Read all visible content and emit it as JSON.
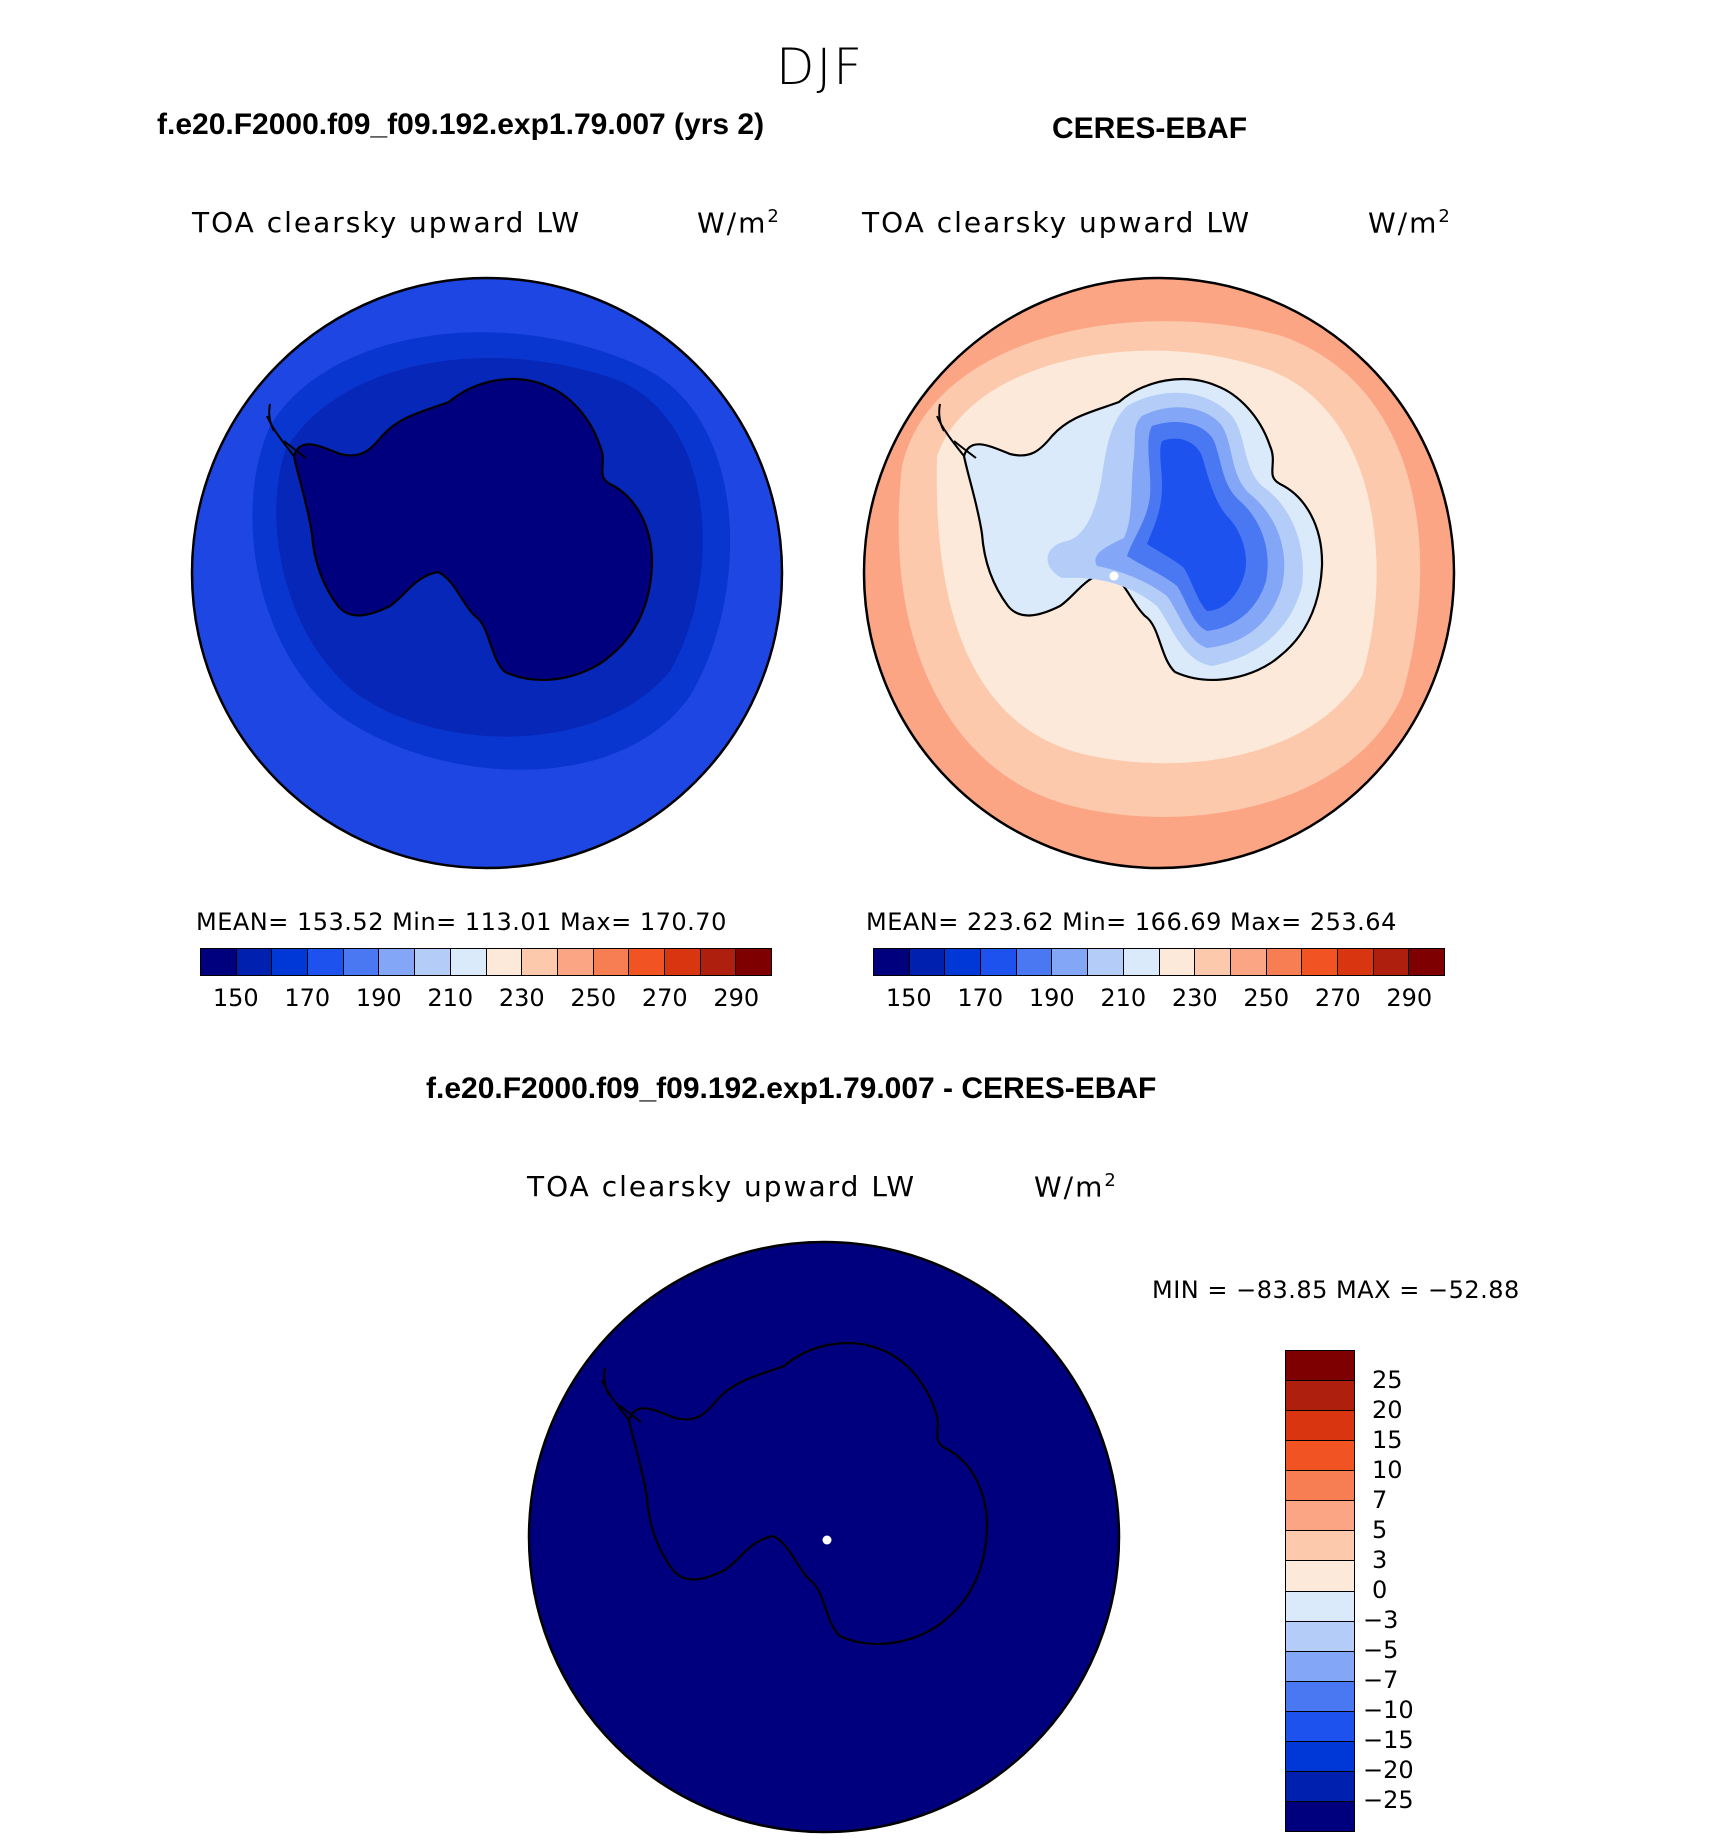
{
  "figure": {
    "season": "DJF",
    "left_title": "f.e20.F2000.f09_f09.192.exp1.79.007 (yrs 2)",
    "right_title": "CERES-EBAF",
    "diff_title": "f.e20.F2000.f09_f09.192.exp1.79.007 - CERES-EBAF"
  },
  "panels": {
    "model": {
      "variable": "TOA clearsky upward LW",
      "units": "W/m",
      "units_sup": "2",
      "stats": "MEAN= 153.52   Min= 113.01   Max= 170.70"
    },
    "obs": {
      "variable": "TOA clearsky upward LW",
      "units": "W/m",
      "units_sup": "2",
      "stats": "MEAN= 223.62   Min= 166.69   Max= 253.64"
    },
    "diff": {
      "variable": "TOA clearsky upward LW",
      "units": "W/m",
      "units_sup": "2",
      "stats": "MIN = −83.85 MAX = −52.88"
    }
  },
  "colorbars": {
    "main": {
      "colors": [
        "#00007f",
        "#0020b0",
        "#0038d8",
        "#1e52ee",
        "#4a78f2",
        "#84a6f6",
        "#b4cdf8",
        "#dbeafb",
        "#fde9d9",
        "#fcc9ad",
        "#fba584",
        "#f77e52",
        "#f25322",
        "#d93510",
        "#ae1f0e",
        "#7f0000"
      ],
      "tick_labels": [
        "150",
        "170",
        "190",
        "210",
        "230",
        "250",
        "270",
        "290"
      ]
    },
    "diff": {
      "colors": [
        "#7f0000",
        "#ae1f0e",
        "#d93510",
        "#f25322",
        "#f77e52",
        "#fba584",
        "#fcc9ad",
        "#fde9d9",
        "#dbeafb",
        "#b4cdf8",
        "#84a6f6",
        "#4a78f2",
        "#1e52ee",
        "#0038d8",
        "#0020b0",
        "#00007f"
      ],
      "tick_labels": [
        "25",
        "20",
        "15",
        "10",
        "7",
        "5",
        "3",
        "0",
        "−3",
        "−5",
        "−7",
        "−10",
        "−15",
        "−20",
        "−25"
      ]
    }
  },
  "chart_data": [
    {
      "type": "heatmap",
      "title": "f.e20.F2000.f09_f09.192.exp1.79.007 (yrs 2)",
      "variable": "TOA clearsky upward LW",
      "units": "W/m2",
      "projection": "south-polar stereographic",
      "levels": [
        150,
        160,
        170,
        180,
        190,
        200,
        210,
        220,
        230,
        240,
        250,
        260,
        270,
        280,
        290
      ],
      "zones_inner_to_outer": [
        113.0,
        150,
        160,
        165,
        170.7
      ],
      "mean": 153.52,
      "min": 113.01,
      "max": 170.7
    },
    {
      "type": "heatmap",
      "title": "CERES-EBAF",
      "variable": "TOA clearsky upward LW",
      "units": "W/m2",
      "projection": "south-polar stereographic",
      "levels": [
        150,
        160,
        170,
        180,
        190,
        200,
        210,
        220,
        230,
        240,
        250,
        260,
        270,
        280,
        290
      ],
      "zones_inner_to_outer": [
        166.7,
        185,
        195,
        205,
        215,
        225,
        235,
        245,
        253.6
      ],
      "mean": 223.62,
      "min": 166.69,
      "max": 253.64
    },
    {
      "type": "heatmap",
      "title": "f.e20.F2000.f09_f09.192.exp1.79.007 - CERES-EBAF",
      "variable": "TOA clearsky upward LW",
      "units": "W/m2",
      "projection": "south-polar stereographic",
      "levels": [
        -25,
        -20,
        -15,
        -10,
        -7,
        -5,
        -3,
        0,
        3,
        5,
        7,
        10,
        15,
        20,
        25
      ],
      "min": -83.85,
      "max": -52.88
    }
  ]
}
